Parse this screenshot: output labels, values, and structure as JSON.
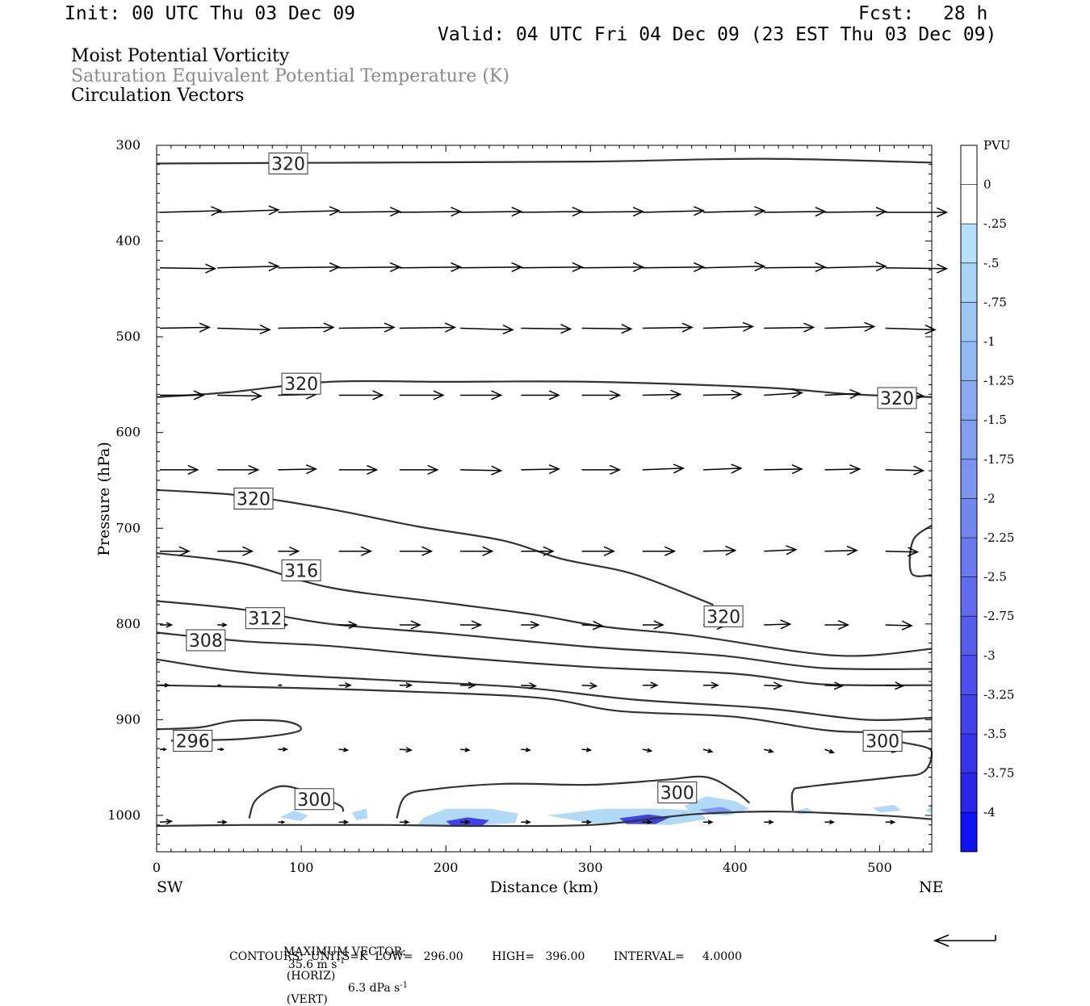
{
  "header": {
    "init": "Init: 00 UTC Thu 03 Dec 09",
    "fcst_label": "Fcst:",
    "fcst_value": "28 h",
    "valid": "Valid: 04 UTC Fri 04 Dec 09 (23 EST Thu 03 Dec 09)"
  },
  "fields": {
    "line1": "Moist Potential Vorticity",
    "line2": "Saturation Equivalent Potential Temperature (K)",
    "line3": "Circulation Vectors"
  },
  "footer": {
    "max_vector_label": "MAXIMUM VECTOR:",
    "horiz": "35.6 m s",
    "horiz_tag": "(HORIZ)",
    "vert": "6.3 dPa s",
    "vert_tag": "(VERT)",
    "exp": "-1",
    "contours": "CONTOURS:  UNITS=K  LOW=   296.00        HIGH=   396.00        INTERVAL=     4.0000"
  },
  "colors": {
    "contour": "#333333",
    "shade_light": "#aed8f5",
    "shade_mid": "#6a8ef0",
    "shade_dark": "#2222dd"
  },
  "chart_data": {
    "type": "cross-section",
    "xlabel": "Distance (km)",
    "ylabel": "Pressure (hPa)",
    "x_end_left": "SW",
    "x_end_right": "NE",
    "xlim": [
      0,
      536
    ],
    "ylim": [
      1038,
      300
    ],
    "x_ticks": [
      0,
      100,
      200,
      300,
      400,
      500
    ],
    "y_ticks": [
      300,
      400,
      500,
      600,
      700,
      800,
      900,
      1000
    ],
    "colorbar": {
      "unit": "PVU",
      "labels": [
        "0",
        "-.25",
        "-.5",
        "-.75",
        "-1",
        "-1.25",
        "-1.5",
        "-1.75",
        "-2",
        "-2.25",
        "-2.5",
        "-2.75",
        "-3",
        "-3.25",
        "-3.5",
        "-3.75",
        "-4"
      ],
      "colors": [
        "#ffffff",
        "#ffffff",
        "#b4e0fa",
        "#a8d4f7",
        "#9cc6f5",
        "#93b8f3",
        "#8aaaf2",
        "#829ef1",
        "#7b92f0",
        "#7386ef",
        "#6a78ed",
        "#616bec",
        "#575deb",
        "#4d4fea",
        "#4241e9",
        "#3633e8",
        "#2a25e7",
        "#1010f0"
      ]
    },
    "contour_labels": [
      {
        "text": "320",
        "x": 91,
        "p": 319
      },
      {
        "text": "320",
        "x": 100,
        "p": 549
      },
      {
        "text": "320",
        "x": 512,
        "p": 564
      },
      {
        "text": "320",
        "x": 67,
        "p": 669
      },
      {
        "text": "316",
        "x": 100,
        "p": 744
      },
      {
        "text": "312",
        "x": 75,
        "p": 794
      },
      {
        "text": "308",
        "x": 34,
        "p": 817
      },
      {
        "text": "320",
        "x": 392,
        "p": 792
      },
      {
        "text": "296",
        "x": 25,
        "p": 922
      },
      {
        "text": "300",
        "x": 502,
        "p": 922
      },
      {
        "text": "300",
        "x": 109,
        "p": 983
      },
      {
        "text": "300",
        "x": 360,
        "p": 976
      }
    ],
    "contours": [
      [
        [
          0,
          319
        ],
        [
          150,
          318
        ],
        [
          300,
          317
        ],
        [
          420,
          314
        ],
        [
          536,
          318
        ]
      ],
      [
        [
          0,
          563
        ],
        [
          50,
          558
        ],
        [
          120,
          547
        ],
        [
          200,
          547
        ],
        [
          300,
          547
        ],
        [
          420,
          553
        ],
        [
          480,
          560
        ],
        [
          536,
          563
        ]
      ],
      [
        [
          0,
          660
        ],
        [
          60,
          666
        ],
        [
          120,
          680
        ],
        [
          180,
          698
        ],
        [
          240,
          713
        ],
        [
          280,
          732
        ],
        [
          330,
          748
        ],
        [
          385,
          780
        ]
      ],
      [
        [
          0,
          726
        ],
        [
          60,
          737
        ],
        [
          120,
          762
        ],
        [
          200,
          778
        ],
        [
          260,
          790
        ],
        [
          310,
          803
        ],
        [
          370,
          812
        ],
        [
          470,
          833
        ],
        [
          536,
          826
        ]
      ],
      [
        [
          0,
          776
        ],
        [
          60,
          785
        ],
        [
          120,
          800
        ],
        [
          200,
          810
        ],
        [
          300,
          824
        ],
        [
          390,
          833
        ],
        [
          460,
          846
        ],
        [
          536,
          847
        ]
      ],
      [
        [
          0,
          809
        ],
        [
          60,
          818
        ],
        [
          120,
          823
        ],
        [
          200,
          834
        ],
        [
          300,
          845
        ],
        [
          400,
          852
        ],
        [
          460,
          863
        ],
        [
          536,
          864
        ]
      ],
      [
        [
          0,
          837
        ],
        [
          60,
          850
        ],
        [
          150,
          858
        ],
        [
          250,
          866
        ],
        [
          330,
          879
        ],
        [
          420,
          888
        ],
        [
          490,
          900
        ],
        [
          536,
          898
        ]
      ],
      [
        [
          0,
          864
        ],
        [
          100,
          867
        ],
        [
          200,
          872
        ],
        [
          270,
          878
        ],
        [
          320,
          891
        ],
        [
          400,
          897
        ],
        [
          470,
          912
        ],
        [
          536,
          912
        ]
      ],
      [
        [
          0,
          910
        ],
        [
          30,
          908
        ],
        [
          55,
          901
        ],
        [
          90,
          902
        ],
        [
          98,
          912
        ],
        [
          60,
          920
        ],
        [
          10,
          922
        ]
      ],
      [
        [
          500,
          920
        ],
        [
          530,
          928
        ],
        [
          536,
          936
        ],
        [
          530,
          955
        ],
        [
          510,
          960
        ],
        [
          450,
          970
        ],
        [
          440,
          975
        ],
        [
          440,
          995
        ]
      ],
      [
        [
          536,
          697
        ],
        [
          523,
          713
        ],
        [
          522,
          747
        ],
        [
          536,
          749
        ]
      ],
      [
        [
          64,
          1003
        ],
        [
          68,
          985
        ],
        [
          80,
          972
        ],
        [
          92,
          970
        ],
        [
          112,
          980
        ],
        [
          127,
          990
        ],
        [
          129,
          996
        ]
      ],
      [
        [
          166,
          1003
        ],
        [
          172,
          980
        ],
        [
          190,
          973
        ],
        [
          240,
          967
        ],
        [
          300,
          968
        ],
        [
          350,
          963
        ],
        [
          380,
          960
        ],
        [
          400,
          975
        ],
        [
          410,
          987
        ]
      ],
      [
        [
          0,
          1011
        ],
        [
          60,
          1010
        ],
        [
          100,
          1010
        ],
        [
          160,
          1010
        ],
        [
          220,
          1011
        ],
        [
          300,
          1010
        ],
        [
          350,
          1002
        ],
        [
          380,
          998
        ],
        [
          430,
          996
        ],
        [
          500,
          1000
        ],
        [
          536,
          1004
        ]
      ]
    ],
    "shading": [
      {
        "level": "-.5",
        "poly": [
          [
            85,
            1002
          ],
          [
            95,
            995
          ],
          [
            105,
            1000
          ],
          [
            100,
            1006
          ]
        ]
      },
      {
        "level": "-.5",
        "poly": [
          [
            135,
            997
          ],
          [
            145,
            993
          ],
          [
            146,
            1003
          ],
          [
            138,
            1005
          ]
        ]
      },
      {
        "level": "-.5",
        "poly": [
          [
            185,
            1002
          ],
          [
            200,
            993
          ],
          [
            230,
            993
          ],
          [
            250,
            998
          ],
          [
            248,
            1008
          ],
          [
            200,
            1012
          ],
          [
            180,
            1010
          ]
        ]
      },
      {
        "level": "-2.5",
        "poly": [
          [
            200,
            1006
          ],
          [
            215,
            1002
          ],
          [
            230,
            1005
          ],
          [
            225,
            1011
          ],
          [
            205,
            1012
          ]
        ]
      },
      {
        "level": "-.5",
        "poly": [
          [
            270,
            1000
          ],
          [
            310,
            993
          ],
          [
            350,
            993
          ],
          [
            375,
            995
          ],
          [
            380,
            1004
          ],
          [
            355,
            1010
          ],
          [
            300,
            1008
          ]
        ]
      },
      {
        "level": "-2.5",
        "poly": [
          [
            320,
            1003
          ],
          [
            340,
            999
          ],
          [
            355,
            1002
          ],
          [
            345,
            1009
          ],
          [
            325,
            1009
          ]
        ]
      },
      {
        "level": "-.5",
        "poly": [
          [
            365,
            990
          ],
          [
            380,
            980
          ],
          [
            400,
            985
          ],
          [
            410,
            993
          ],
          [
            395,
            1000
          ],
          [
            370,
            998
          ]
        ]
      },
      {
        "level": "-1.5",
        "poly": [
          [
            375,
            994
          ],
          [
            390,
            991
          ],
          [
            398,
            995
          ],
          [
            385,
            999
          ]
        ]
      },
      {
        "level": "-.5",
        "poly": [
          [
            440,
            996
          ],
          [
            450,
            992
          ],
          [
            455,
            997
          ],
          [
            445,
            999
          ]
        ]
      },
      {
        "level": "-.5",
        "poly": [
          [
            495,
            992
          ],
          [
            510,
            989
          ],
          [
            515,
            995
          ],
          [
            500,
            997
          ]
        ]
      },
      {
        "level": "-.5",
        "poly": [
          [
            532,
            995
          ],
          [
            536,
            990
          ],
          [
            536,
            998
          ]
        ]
      }
    ],
    "vector_rows": [
      {
        "p": 372,
        "y0": 370,
        "x": [
          0,
          42,
          84,
          126,
          168,
          210,
          252,
          294,
          336,
          378,
          420,
          462,
          504
        ],
        "u": [
          42,
          42,
          42,
          42,
          42,
          42,
          42,
          42,
          42,
          42,
          42,
          42,
          42
        ],
        "w": [
          -2,
          -3,
          -2,
          -1,
          -1,
          -1,
          -1,
          -1,
          -2,
          -2,
          -1,
          -1,
          0
        ]
      },
      {
        "p": 430,
        "y0": 428,
        "x": [
          0,
          42,
          84,
          126,
          168,
          210,
          252,
          294,
          336,
          378,
          420,
          462,
          504
        ],
        "u": [
          38,
          42,
          42,
          42,
          42,
          42,
          42,
          42,
          42,
          42,
          42,
          42,
          42
        ],
        "w": [
          1,
          -2,
          -1,
          -1,
          -1,
          -1,
          -1,
          -1,
          -1,
          -2,
          -1,
          -2,
          1
        ]
      },
      {
        "p": 493,
        "y0": 491,
        "x": [
          0,
          42,
          84,
          126,
          168,
          210,
          252,
          294,
          336,
          378,
          420,
          462,
          504
        ],
        "u": [
          34,
          36,
          38,
          38,
          38,
          36,
          34,
          34,
          34,
          34,
          34,
          34,
          34
        ],
        "w": [
          -1,
          2,
          -1,
          -1,
          -1,
          2,
          1,
          1,
          -1,
          -2,
          -1,
          -2,
          2
        ]
      },
      {
        "p": 563,
        "y0": 561,
        "x": [
          0,
          42,
          84,
          126,
          168,
          210,
          252,
          294,
          336,
          378,
          420,
          462,
          504
        ],
        "u": [
          30,
          30,
          26,
          30,
          30,
          28,
          26,
          26,
          26,
          26,
          26,
          24,
          26
        ],
        "w": [
          0,
          1,
          -1,
          0,
          0,
          0,
          0,
          0,
          -1,
          -1,
          -3,
          -2,
          1
        ]
      },
      {
        "p": 641,
        "y0": 639,
        "x": [
          0,
          42,
          84,
          126,
          168,
          210,
          252,
          294,
          336,
          378,
          420,
          462,
          504
        ],
        "u": [
          26,
          28,
          26,
          26,
          26,
          28,
          26,
          26,
          28,
          26,
          26,
          24,
          26
        ],
        "w": [
          0,
          0,
          -1,
          0,
          0,
          1,
          -1,
          0,
          -2,
          -2,
          -1,
          -1,
          1
        ]
      },
      {
        "p": 726,
        "y0": 724,
        "x": [
          0,
          42,
          84,
          126,
          168,
          210,
          252,
          294,
          336,
          378,
          420,
          462,
          504
        ],
        "u": [
          20,
          24,
          14,
          22,
          22,
          22,
          22,
          22,
          22,
          22,
          22,
          22,
          22
        ],
        "w": [
          0,
          0,
          0,
          0,
          0,
          0,
          0,
          0,
          0,
          -1,
          -2,
          -1,
          1
        ]
      },
      {
        "p": 803,
        "y0": 801,
        "x": [
          0,
          42,
          84,
          126,
          168,
          210,
          252,
          294,
          336,
          378,
          420,
          462,
          504
        ],
        "u": [
          8,
          6,
          6,
          12,
          14,
          14,
          12,
          14,
          14,
          16,
          18,
          16,
          18
        ],
        "w": [
          0,
          0,
          0,
          0,
          0,
          0,
          0,
          1,
          0,
          0,
          -1,
          0,
          1
        ]
      },
      {
        "p": 866,
        "y0": 864,
        "x": [
          0,
          42,
          84,
          126,
          168,
          210,
          252,
          294,
          336,
          378,
          420,
          462,
          504
        ],
        "u": [
          6,
          2,
          2,
          8,
          8,
          10,
          10,
          10,
          10,
          10,
          12,
          12,
          12
        ],
        "w": [
          0,
          0,
          0,
          0,
          0,
          0,
          1,
          1,
          0,
          0,
          1,
          1,
          1
        ]
      },
      {
        "p": 933,
        "y0": 931,
        "x": [
          0,
          42,
          84,
          126,
          168,
          210,
          252,
          294,
          336,
          378,
          420,
          462,
          504
        ],
        "u": [
          4,
          4,
          6,
          6,
          8,
          6,
          6,
          6,
          6,
          6,
          6,
          6,
          8
        ],
        "w": [
          0,
          0,
          0,
          1,
          1,
          1,
          1,
          1,
          2,
          3,
          3,
          4,
          2
        ]
      },
      {
        "p": 1009,
        "y0": 1007,
        "x": [
          0,
          42,
          84,
          126,
          168,
          210,
          252,
          294,
          336,
          378,
          420,
          462,
          504
        ],
        "u": [
          8,
          6,
          4,
          6,
          6,
          6,
          6,
          6,
          6,
          6,
          6,
          6,
          6
        ],
        "w": [
          -1,
          0,
          0,
          0,
          0,
          0,
          0,
          0,
          0,
          0,
          0,
          0,
          0
        ]
      }
    ]
  }
}
